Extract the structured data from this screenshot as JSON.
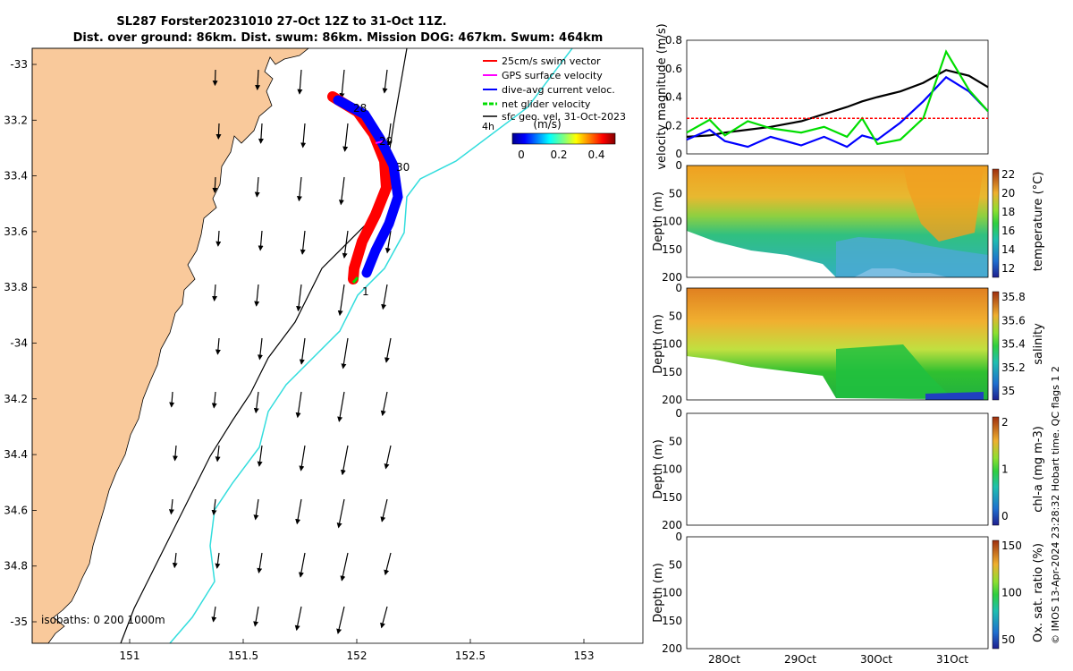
{
  "header": {
    "title_line1": "SL287 Forster20231010 27-Oct 12Z to 31-Oct 11Z.",
    "title_line2": "Dist. over ground: 86km. Dist. swum: 86km. Mission DOG: 467km. Swum: 464km"
  },
  "map": {
    "lat_ticks": [
      "-33",
      "33.2",
      "33.4",
      "33.6",
      "33.8",
      "-34",
      "34.2",
      "34.4",
      "34.6",
      "34.8",
      "-35"
    ],
    "lon_ticks": [
      "151",
      "151.5",
      "152",
      "152.5",
      "153"
    ],
    "legend": [
      {
        "label": "25cm/s swim vector",
        "color": "#ff0000"
      },
      {
        "label": "GPS surface velocity",
        "color": "#ff00ff"
      },
      {
        "label": "dive-avg current veloc.",
        "color": "#0000ff"
      },
      {
        "label": "net glider velocity",
        "color": "#00dd00"
      },
      {
        "label": "sfc geo. vel. 31-Oct-2023",
        "color": "#000000"
      }
    ],
    "colorbar_title": "(m/s)",
    "colorbar_ticks": [
      "0",
      "0.2",
      "0.4"
    ],
    "day_labels": [
      "28",
      "29",
      "30",
      "1"
    ],
    "hour_label": "4h",
    "isobath_label": "isobaths: 0   200  1000m",
    "land_color": "#f9c99b",
    "isobath_200_color": "#000000",
    "isobath_1000_color": "#33dddd"
  },
  "chart_data": [
    {
      "type": "line",
      "ylabel": "velocity magnitude (m/s)",
      "ylim": [
        0,
        0.8
      ],
      "yticks": [
        "0",
        "0.2",
        "0.4",
        "0.6",
        "0.8"
      ],
      "x_days": [
        27.5,
        27.8,
        28.0,
        28.3,
        28.6,
        29.0,
        29.3,
        29.6,
        29.8,
        30.0,
        30.3,
        30.6,
        30.9,
        31.2,
        31.45
      ],
      "series": [
        {
          "color": "#000000",
          "values": [
            0.12,
            0.13,
            0.15,
            0.17,
            0.19,
            0.23,
            0.28,
            0.33,
            0.37,
            0.4,
            0.44,
            0.5,
            0.59,
            0.55,
            0.47
          ]
        },
        {
          "color": "#0000ff",
          "values": [
            0.1,
            0.17,
            0.09,
            0.05,
            0.12,
            0.06,
            0.12,
            0.05,
            0.13,
            0.1,
            0.22,
            0.37,
            0.54,
            0.44,
            0.3
          ]
        },
        {
          "color": "#00dd00",
          "values": [
            0.15,
            0.24,
            0.13,
            0.23,
            0.18,
            0.15,
            0.19,
            0.12,
            0.25,
            0.07,
            0.1,
            0.25,
            0.72,
            0.45,
            0.3
          ]
        },
        {
          "color": "#ff0000",
          "values": [
            0.25,
            0.25,
            0.25,
            0.25,
            0.25,
            0.25,
            0.25,
            0.25,
            0.25,
            0.25,
            0.25,
            0.25,
            0.25,
            0.25,
            0.25
          ]
        }
      ]
    },
    {
      "type": "heatmap",
      "ylabel": "Depth (m)",
      "yticks": [
        "0",
        "50",
        "100",
        "150",
        "200"
      ],
      "colorbar_label": "temperature (°C)",
      "colorbar_ticks": [
        "22",
        "20",
        "18",
        "16",
        "14",
        "12"
      ]
    },
    {
      "type": "heatmap",
      "ylabel": "Depth (m)",
      "yticks": [
        "0",
        "50",
        "100",
        "150",
        "200"
      ],
      "colorbar_label": "salinity",
      "colorbar_ticks": [
        "35.8",
        "35.6",
        "35.4",
        "35.2",
        "35"
      ]
    },
    {
      "type": "heatmap",
      "ylabel": "Depth (m)",
      "yticks": [
        "0",
        "50",
        "100",
        "150",
        "200"
      ],
      "colorbar_label": "chl-a (mg m-3)",
      "colorbar_ticks": [
        "2",
        "1",
        "0"
      ]
    },
    {
      "type": "heatmap",
      "ylabel": "Depth (m)",
      "yticks": [
        "0",
        "50",
        "100",
        "150",
        "200"
      ],
      "colorbar_label": "Ox. sat. ratio (%)",
      "colorbar_ticks": [
        "150",
        "100",
        "50"
      ],
      "xticks": [
        "28Oct",
        "29Oct",
        "30Oct",
        "31Oct"
      ]
    }
  ],
  "footer": {
    "credit": "© IMOS 13-Apr-2024 23:28:32 Hobart time. QC flags 1  2"
  }
}
